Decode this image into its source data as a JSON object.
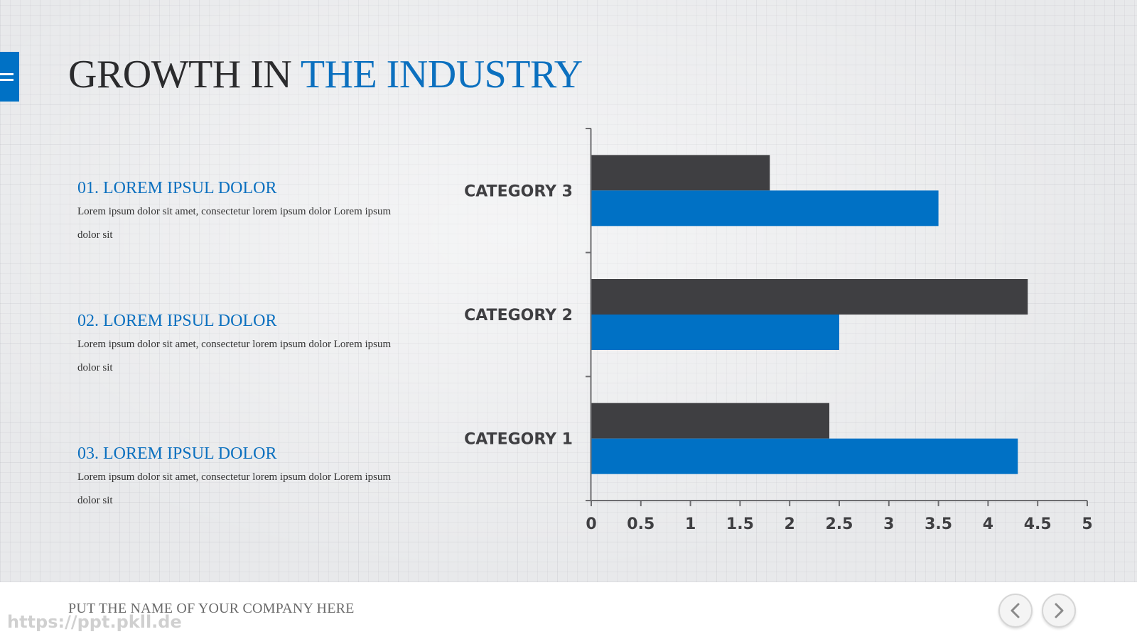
{
  "slide": {
    "title_part1": "GROWTH IN ",
    "title_part2": "THE INDUSTRY",
    "items": [
      {
        "heading": "01. LOREM IPSUL DOLOR",
        "text": "Lorem ipsum dolor sit amet, consectetur lorem ipsum dolor  Lorem ipsum dolor sit"
      },
      {
        "heading": "02. LOREM IPSUL DOLOR",
        "text": "Lorem ipsum dolor sit amet, consectetur lorem ipsum dolor  Lorem ipsum dolor sit"
      },
      {
        "heading": "03. LOREM IPSUL DOLOR",
        "text": "Lorem ipsum dolor sit amet, consectetur lorem ipsum dolor  Lorem ipsum dolor sit"
      }
    ]
  },
  "footer": {
    "company": "PUT THE NAME OF YOUR COMPANY HERE",
    "watermark": "https://ppt.pkll.de"
  },
  "icons": {
    "menu": "hamburger-menu-icon",
    "prev": "chevron-left-icon",
    "next": "chevron-right-icon"
  },
  "colors": {
    "accent": "#0b70bf",
    "series_blue": "#0071c5",
    "series_dark": "#3f3f42",
    "title_dark": "#2b2b2d"
  },
  "chart_data": {
    "type": "bar",
    "orientation": "horizontal",
    "categories": [
      "CATEGORY 1",
      "CATEGORY 2",
      "CATEGORY 3"
    ],
    "series": [
      {
        "values": [
          4.3,
          2.5,
          3.5
        ],
        "color": "#0071c5"
      },
      {
        "values": [
          2.4,
          4.4,
          1.8
        ],
        "color": "#3f3f42"
      }
    ],
    "xlim": [
      0,
      5
    ],
    "xticks": [
      "0",
      "0.5",
      "1",
      "1.5",
      "2",
      "2.5",
      "3",
      "3.5",
      "4",
      "4.5",
      "5"
    ],
    "xlabel": "",
    "ylabel": "",
    "title": "",
    "grid": false,
    "legend": "none"
  }
}
